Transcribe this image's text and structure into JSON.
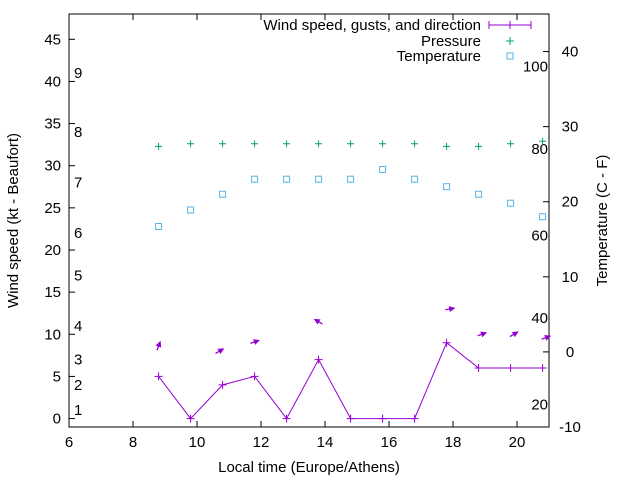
{
  "chart_data": {
    "type": "line",
    "xlabel": "Local time (Europe/Athens)",
    "ylabel": "Wind speed (kt - Beaufort)",
    "y2label": "Temperature (C - F)",
    "xlim": [
      6,
      21
    ],
    "ylim": [
      -1,
      48
    ],
    "y2lim": [
      -10,
      45
    ],
    "x_ticks": [
      "6",
      "8",
      "10",
      "12",
      "14",
      "16",
      "18",
      "20"
    ],
    "y_ticks": [
      "0",
      "5",
      "10",
      "15",
      "20",
      "25",
      "30",
      "35",
      "40",
      "45"
    ],
    "y2_ticks": [
      "-10",
      "0",
      "10",
      "20",
      "30",
      "40"
    ],
    "beaufort_labels": [
      {
        "label": "1",
        "y": 1
      },
      {
        "label": "2",
        "y": 4
      },
      {
        "label": "3",
        "y": 7
      },
      {
        "label": "4",
        "y": 11
      },
      {
        "label": "5",
        "y": 17
      },
      {
        "label": "6",
        "y": 22
      },
      {
        "label": "7",
        "y": 28
      },
      {
        "label": "8",
        "y": 34
      },
      {
        "label": "9",
        "y": 41
      }
    ],
    "fahrenheit_labels": [
      {
        "label": "20",
        "y2": -7
      },
      {
        "label": "40",
        "y2": 4.5
      },
      {
        "label": "60",
        "y2": 15.5
      },
      {
        "label": "80",
        "y2": 27
      },
      {
        "label": "100",
        "y2": 38
      }
    ],
    "series": [
      {
        "name": "Wind speed, gusts, and direction",
        "color": "#9400d3",
        "x": [
          8.8,
          9.8,
          10.8,
          11.8,
          12.8,
          13.8,
          14.8,
          15.8,
          16.8,
          17.8,
          18.8,
          19.8,
          20.8
        ],
        "values": [
          5,
          0,
          4,
          5,
          0,
          7,
          0,
          0,
          0,
          9,
          6,
          6,
          6
        ]
      },
      {
        "name": "Pressure",
        "color": "#009e73",
        "x": [
          8.8,
          9.8,
          10.8,
          11.8,
          12.8,
          13.8,
          14.8,
          15.8,
          16.8,
          17.8,
          18.8,
          19.8,
          20.8
        ],
        "values": [
          32.3,
          32.6,
          32.6,
          32.6,
          32.6,
          32.6,
          32.6,
          32.6,
          32.6,
          32.3,
          32.3,
          32.6,
          32.9
        ]
      },
      {
        "name": "Temperature",
        "color": "#56b4e9",
        "axis": "y2",
        "x": [
          8.8,
          9.8,
          10.8,
          11.8,
          12.8,
          13.8,
          14.8,
          15.8,
          16.8,
          17.8,
          18.8,
          19.8,
          20.8
        ],
        "values": [
          16.7,
          18.9,
          21,
          23,
          23,
          23,
          23,
          24.3,
          23,
          22,
          21,
          19.8,
          18
        ]
      }
    ],
    "wind_arrows": [
      {
        "x": 8.8,
        "y": 8.6,
        "direction_deg": 20
      },
      {
        "x": 10.7,
        "y": 8.0,
        "direction_deg": 60
      },
      {
        "x": 11.8,
        "y": 9.1,
        "direction_deg": 70
      },
      {
        "x": 13.8,
        "y": 11.5,
        "direction_deg": 300
      },
      {
        "x": 17.9,
        "y": 13.0,
        "direction_deg": 80
      },
      {
        "x": 18.9,
        "y": 10.0,
        "direction_deg": 70
      },
      {
        "x": 19.9,
        "y": 10.0,
        "direction_deg": 60
      },
      {
        "x": 20.9,
        "y": 9.6,
        "direction_deg": 70
      }
    ]
  }
}
